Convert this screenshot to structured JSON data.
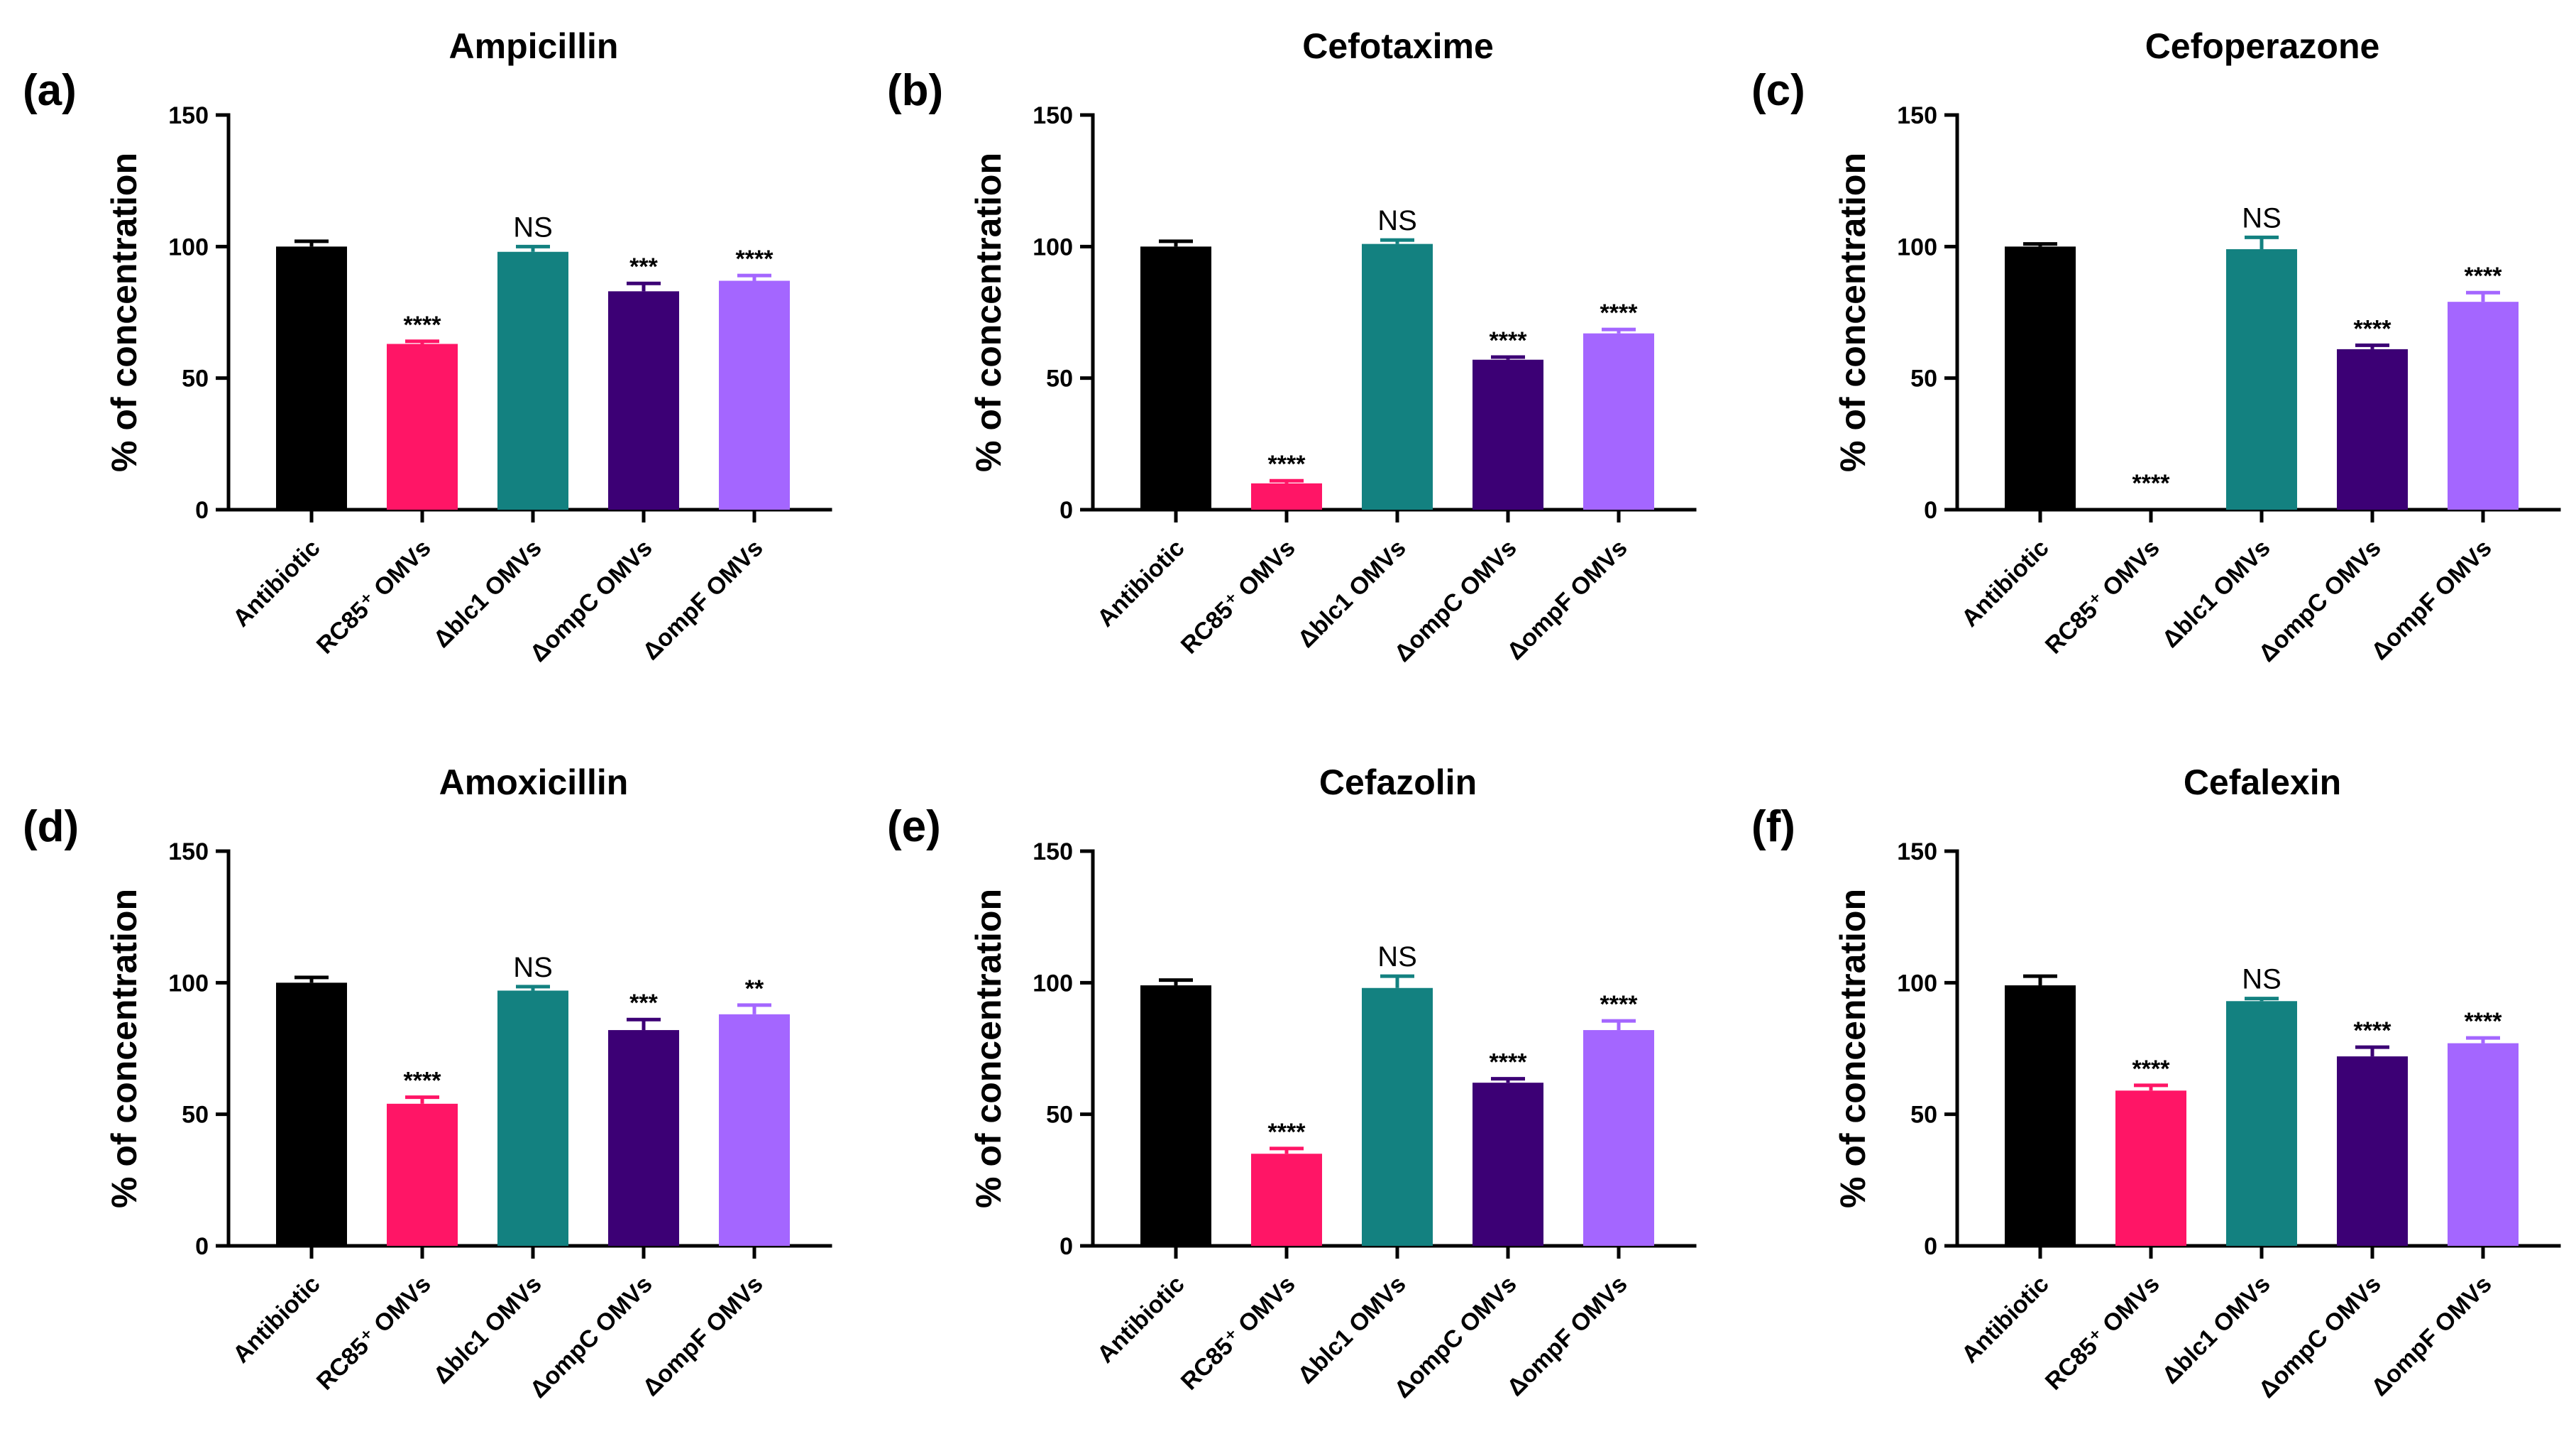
{
  "chart_data": [
    {
      "type": "bar",
      "panel": "(a)",
      "title": "Ampicillin",
      "ylabel": "% of concentration",
      "xlabel": "",
      "ylim": [
        0,
        150
      ],
      "yticks": [
        0,
        50,
        100,
        150
      ],
      "categories": [
        "Antibiotic",
        "RC85⁺ OMVs",
        "Δblc1 OMVs",
        "ΔompC OMVs",
        "ΔompF OMVs"
      ],
      "values": [
        100,
        63,
        98,
        83,
        87
      ],
      "errors": [
        2,
        1,
        2,
        3,
        2
      ],
      "annotations": [
        "",
        "****",
        "NS",
        "***",
        "****"
      ]
    },
    {
      "type": "bar",
      "panel": "(b)",
      "title": "Cefotaxime",
      "ylabel": "% of concentration",
      "xlabel": "",
      "ylim": [
        0,
        150
      ],
      "yticks": [
        0,
        50,
        100,
        150
      ],
      "categories": [
        "Antibiotic",
        "RC85⁺ OMVs",
        "Δblc1 OMVs",
        "ΔompC OMVs",
        "ΔompF OMVs"
      ],
      "values": [
        100,
        10,
        101,
        57,
        67
      ],
      "errors": [
        2,
        1,
        1.5,
        1,
        1.5
      ],
      "annotations": [
        "",
        "****",
        "NS",
        "****",
        "****"
      ]
    },
    {
      "type": "bar",
      "panel": "(c)",
      "title": "Cefoperazone",
      "ylabel": "% of concentration",
      "xlabel": "",
      "ylim": [
        0,
        150
      ],
      "yticks": [
        0,
        50,
        100,
        150
      ],
      "categories": [
        "Antibiotic",
        "RC85⁺ OMVs",
        "Δblc1 OMVs",
        "ΔompC OMVs",
        "ΔompF OMVs"
      ],
      "values": [
        100,
        0,
        99,
        61,
        79
      ],
      "errors": [
        1,
        0,
        4.5,
        1.5,
        3.5
      ],
      "annotations": [
        "",
        "****",
        "NS",
        "****",
        "****"
      ]
    },
    {
      "type": "bar",
      "panel": "(d)",
      "title": "Amoxicillin",
      "ylabel": "% of concentration",
      "xlabel": "",
      "ylim": [
        0,
        150
      ],
      "yticks": [
        0,
        50,
        100,
        150
      ],
      "categories": [
        "Antibiotic",
        "RC85⁺ OMVs",
        "Δblc1 OMVs",
        "ΔompC OMVs",
        "ΔompF OMVs"
      ],
      "values": [
        100,
        54,
        97,
        82,
        88
      ],
      "errors": [
        2,
        2.5,
        1.5,
        4,
        3.5
      ],
      "annotations": [
        "",
        "****",
        "NS",
        "***",
        "**"
      ]
    },
    {
      "type": "bar",
      "panel": "(e)",
      "title": "Cefazolin",
      "ylabel": "% of concentration",
      "xlabel": "",
      "ylim": [
        0,
        150
      ],
      "yticks": [
        0,
        50,
        100,
        150
      ],
      "categories": [
        "Antibiotic",
        "RC85⁺ OMVs",
        "Δblc1 OMVs",
        "ΔompC OMVs",
        "ΔompF OMVs"
      ],
      "values": [
        99,
        35,
        98,
        62,
        82
      ],
      "errors": [
        2,
        2,
        4.5,
        1.5,
        3.5
      ],
      "annotations": [
        "",
        "****",
        "NS",
        "****",
        "****"
      ]
    },
    {
      "type": "bar",
      "panel": "(f)",
      "title": "Cefalexin",
      "ylabel": "% of concentration",
      "xlabel": "",
      "ylim": [
        0,
        150
      ],
      "yticks": [
        0,
        50,
        100,
        150
      ],
      "categories": [
        "Antibiotic",
        "RC85⁺ OMVs",
        "Δblc1 OMVs",
        "ΔompC OMVs",
        "ΔompF OMVs"
      ],
      "values": [
        99,
        59,
        93,
        72,
        77
      ],
      "errors": [
        3.5,
        2,
        1,
        3.5,
        2
      ],
      "annotations": [
        "",
        "****",
        "NS",
        "****",
        "****"
      ]
    }
  ],
  "colors": {
    "bars": [
      "#000000",
      "#ff1566",
      "#138180",
      "#3c0075",
      "#a466ff"
    ],
    "axis": "#000000",
    "text": "#000000"
  }
}
